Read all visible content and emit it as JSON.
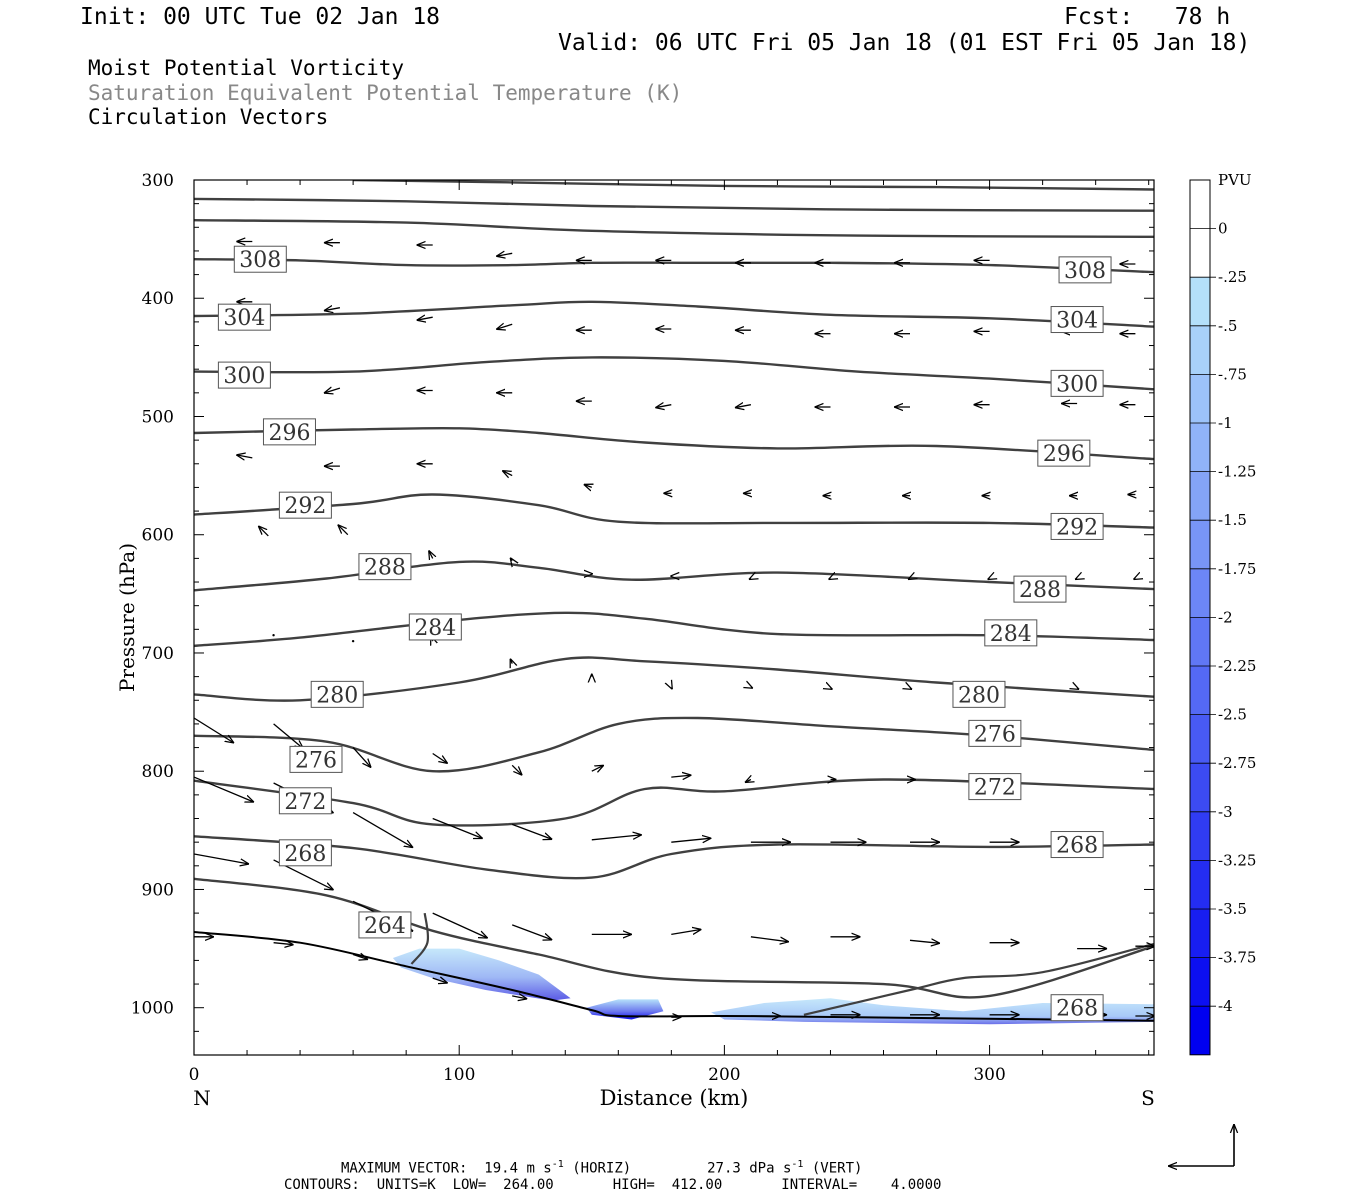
{
  "header": {
    "init": "Init: 00 UTC Tue 02 Jan 18",
    "fcst": "Fcst:   78 h",
    "valid": "Valid: 06 UTC Fri 05 Jan 18 (01 EST Fri 05 Jan 18)"
  },
  "titles": {
    "line1": "Moist Potential Vorticity",
    "line2": "Saturation Equivalent Potential Temperature (K)",
    "line3": "Circulation Vectors"
  },
  "footer": {
    "max_vector_label": "MAXIMUM VECTOR:",
    "horiz_value": "19.4 m s",
    "horiz_exp": "-1",
    "horiz_tag": "(HORIZ)",
    "vert_value": "27.3 dPa s",
    "vert_exp": "-1",
    "vert_tag": "(VERT)",
    "contours_line": "CONTOURS:  UNITS=K  LOW=  264.00       HIGH=  412.00       INTERVAL=    4.0000"
  },
  "colors": {
    "contour": "#404040",
    "pv_light": "#b4e0fa",
    "pv_dark": "#0000f0"
  },
  "chart_data": {
    "type": "cross-section",
    "xlabel": "Distance (km)",
    "ylabel": "Pressure (hPa)",
    "x_left_label": "N",
    "x_right_label": "S",
    "xlim": [
      0,
      362
    ],
    "ylim": [
      1040,
      300
    ],
    "x_ticks": [
      "0",
      "100",
      "200",
      "300"
    ],
    "y_ticks": [
      "300",
      "400",
      "500",
      "600",
      "700",
      "800",
      "900",
      "1000"
    ],
    "colorbar": {
      "unit": "PVU",
      "labels": [
        "0",
        "-.25",
        "-.5",
        "-.75",
        "-1",
        "-1.25",
        "-1.5",
        "-1.75",
        "-2",
        "-2.25",
        "-2.5",
        "-2.75",
        "-3",
        "-3.25",
        "-3.5",
        "-3.75",
        "-4"
      ]
    },
    "contours": [
      {
        "label": "308",
        "points": [
          [
            0,
            367
          ],
          [
            40,
            368
          ],
          [
            80,
            372
          ],
          [
            120,
            372
          ],
          [
            150,
            370
          ],
          [
            190,
            370
          ],
          [
            240,
            370
          ],
          [
            300,
            372
          ],
          [
            362,
            378
          ]
        ]
      },
      {
        "label": "304",
        "points": [
          [
            0,
            415
          ],
          [
            60,
            413
          ],
          [
            120,
            406
          ],
          [
            150,
            403
          ],
          [
            190,
            407
          ],
          [
            240,
            414
          ],
          [
            300,
            417
          ],
          [
            362,
            424
          ]
        ]
      },
      {
        "label": "300",
        "points": [
          [
            0,
            462
          ],
          [
            60,
            462
          ],
          [
            110,
            454
          ],
          [
            150,
            450
          ],
          [
            200,
            453
          ],
          [
            250,
            462
          ],
          [
            300,
            468
          ],
          [
            362,
            477
          ]
        ]
      },
      {
        "label": "296",
        "points": [
          [
            0,
            514
          ],
          [
            60,
            511
          ],
          [
            100,
            510
          ],
          [
            130,
            514
          ],
          [
            170,
            522
          ],
          [
            220,
            527
          ],
          [
            280,
            525
          ],
          [
            362,
            536
          ]
        ]
      },
      {
        "label": "292",
        "points": [
          [
            0,
            583
          ],
          [
            60,
            574
          ],
          [
            90,
            566
          ],
          [
            130,
            575
          ],
          [
            160,
            589
          ],
          [
            220,
            590
          ],
          [
            300,
            590
          ],
          [
            362,
            594
          ]
        ]
      },
      {
        "label": "288",
        "points": [
          [
            0,
            647
          ],
          [
            50,
            637
          ],
          [
            100,
            623
          ],
          [
            130,
            628
          ],
          [
            165,
            638
          ],
          [
            220,
            632
          ],
          [
            300,
            640
          ],
          [
            362,
            646
          ]
        ]
      },
      {
        "label": "284",
        "points": [
          [
            0,
            694
          ],
          [
            40,
            687
          ],
          [
            100,
            672
          ],
          [
            140,
            666
          ],
          [
            170,
            671
          ],
          [
            220,
            684
          ],
          [
            300,
            685
          ],
          [
            362,
            689
          ]
        ]
      },
      {
        "label": "280",
        "points": [
          [
            0,
            735
          ],
          [
            40,
            740
          ],
          [
            100,
            725
          ],
          [
            140,
            705
          ],
          [
            170,
            707
          ],
          [
            220,
            714
          ],
          [
            280,
            725
          ],
          [
            362,
            737
          ]
        ]
      },
      {
        "label": "276",
        "points": [
          [
            0,
            770
          ],
          [
            50,
            775
          ],
          [
            90,
            800
          ],
          [
            130,
            784
          ],
          [
            160,
            760
          ],
          [
            190,
            755
          ],
          [
            240,
            762
          ],
          [
            300,
            770
          ],
          [
            362,
            782
          ]
        ]
      },
      {
        "label": "272",
        "points": [
          [
            0,
            808
          ],
          [
            60,
            827
          ],
          [
            90,
            845
          ],
          [
            140,
            840
          ],
          [
            170,
            815
          ],
          [
            200,
            817
          ],
          [
            260,
            807
          ],
          [
            362,
            815
          ]
        ]
      },
      {
        "label": "268",
        "points": [
          [
            0,
            855
          ],
          [
            60,
            865
          ],
          [
            110,
            883
          ],
          [
            150,
            890
          ],
          [
            180,
            870
          ],
          [
            220,
            862
          ],
          [
            300,
            864
          ],
          [
            362,
            862
          ]
        ]
      },
      {
        "label": "264",
        "points": [
          [
            0,
            891
          ],
          [
            50,
            905
          ],
          [
            90,
            935
          ],
          [
            130,
            955
          ],
          [
            175,
            975
          ],
          [
            260,
            980
          ],
          [
            300,
            990
          ],
          [
            362,
            948
          ]
        ]
      }
    ],
    "pv_regions": [
      {
        "level": "-0.25",
        "x_range": [
          75,
          140
        ]
      },
      {
        "level": "-4",
        "x_range": [
          160,
          175
        ]
      },
      {
        "level": "-0.5",
        "x_range": [
          195,
          362
        ]
      }
    ],
    "contour_labels": [
      {
        "text": "308",
        "x": 25,
        "p": 367
      },
      {
        "text": "304",
        "x": 19,
        "p": 416
      },
      {
        "text": "300",
        "x": 19,
        "p": 465
      },
      {
        "text": "296",
        "x": 36,
        "p": 513
      },
      {
        "text": "292",
        "x": 42,
        "p": 575
      },
      {
        "text": "288",
        "x": 72,
        "p": 627
      },
      {
        "text": "284",
        "x": 91,
        "p": 678
      },
      {
        "text": "280",
        "x": 54,
        "p": 735
      },
      {
        "text": "276",
        "x": 46,
        "p": 790
      },
      {
        "text": "272",
        "x": 42,
        "p": 825
      },
      {
        "text": "268",
        "x": 42,
        "p": 869
      },
      {
        "text": "264",
        "x": 72,
        "p": 930
      },
      {
        "text": "308",
        "x": 336,
        "p": 376
      },
      {
        "text": "304",
        "x": 333,
        "p": 418
      },
      {
        "text": "300",
        "x": 333,
        "p": 472
      },
      {
        "text": "296",
        "x": 328,
        "p": 531
      },
      {
        "text": "292",
        "x": 333,
        "p": 593
      },
      {
        "text": "288",
        "x": 319,
        "p": 646
      },
      {
        "text": "284",
        "x": 308,
        "p": 683
      },
      {
        "text": "280",
        "x": 296,
        "p": 735
      },
      {
        "text": "276",
        "x": 302,
        "p": 768
      },
      {
        "text": "272",
        "x": 302,
        "p": 813
      },
      {
        "text": "268",
        "x": 333,
        "p": 862
      },
      {
        "text": "268",
        "x": 333,
        "p": 1000
      }
    ]
  }
}
